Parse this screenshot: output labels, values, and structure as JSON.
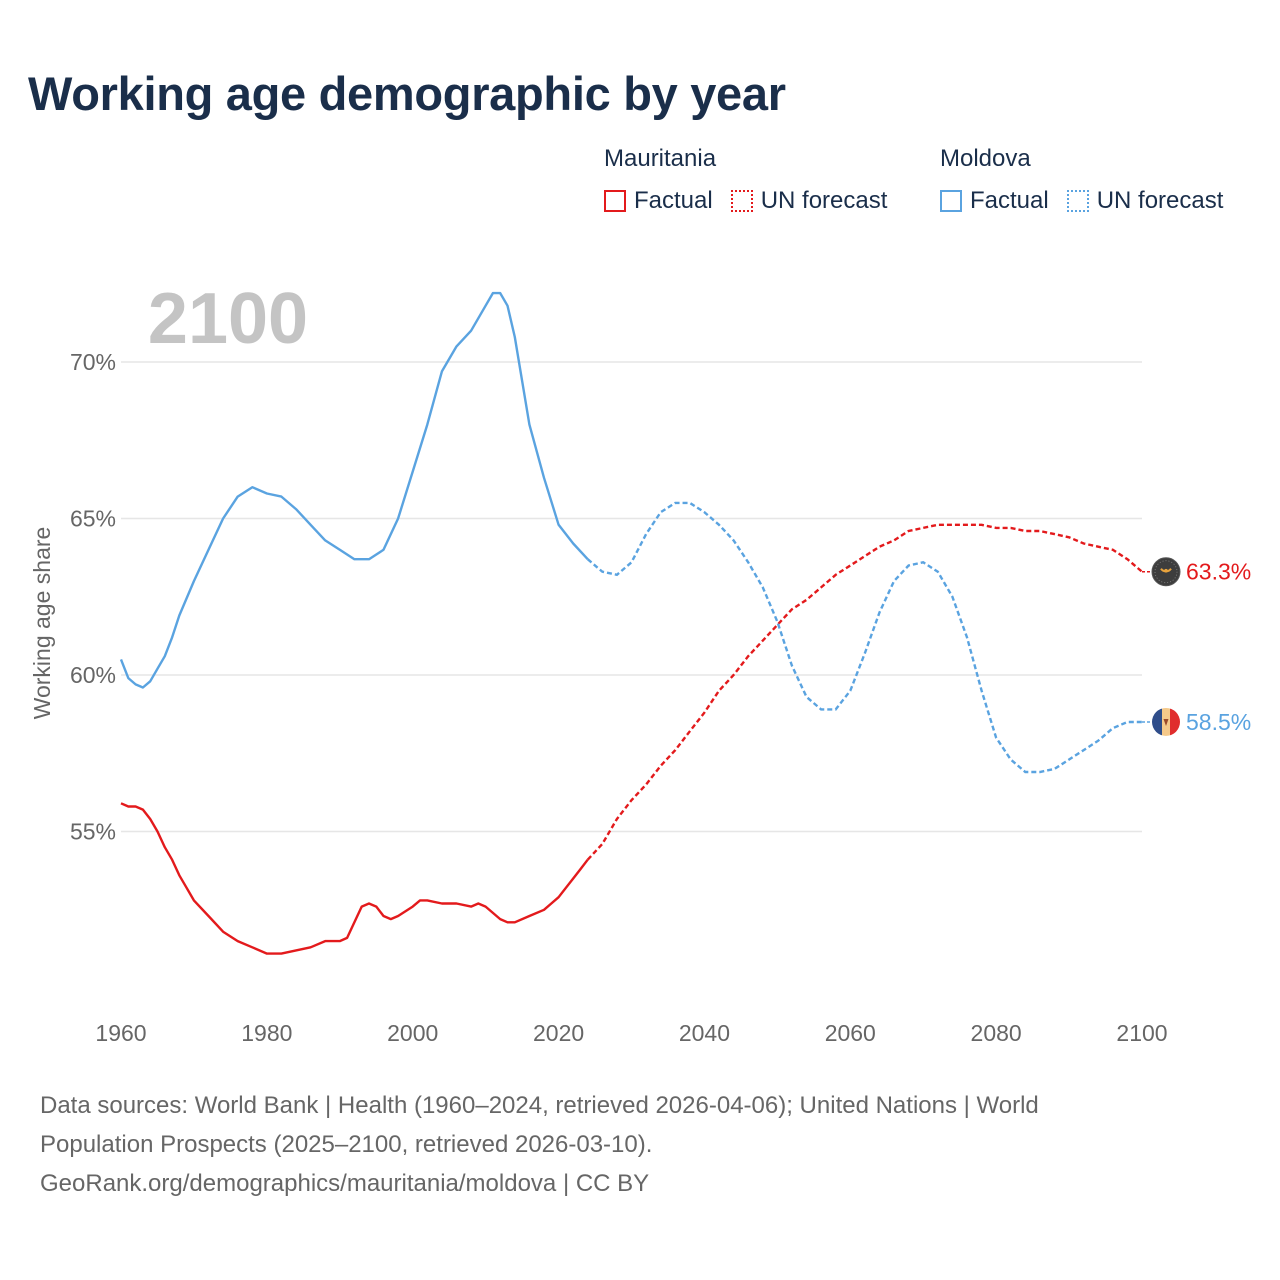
{
  "title": "Working age demographic by year",
  "legend": {
    "series": [
      {
        "country": "Mauritania",
        "color": "#e31a1c",
        "factual_label": "Factual",
        "forecast_label": "UN forecast"
      },
      {
        "country": "Moldova",
        "color": "#5aa3e0",
        "factual_label": "Factual",
        "forecast_label": "UN forecast"
      }
    ]
  },
  "chart_data": {
    "type": "line",
    "title": "Working age demographic by year",
    "ylabel": "Working age share",
    "xlabel": "",
    "year_watermark": "2100",
    "xlim": [
      1960,
      2100
    ],
    "ylim": [
      50,
      73
    ],
    "x_ticks": [
      1960,
      1980,
      2000,
      2020,
      2040,
      2060,
      2080,
      2100
    ],
    "y_ticks": [
      {
        "value": 55,
        "label": "55%"
      },
      {
        "value": 60,
        "label": "60%"
      },
      {
        "value": 65,
        "label": "65%"
      },
      {
        "value": 70,
        "label": "70%"
      }
    ],
    "factual_range": [
      1960,
      2024
    ],
    "forecast_range": [
      2024,
      2100
    ],
    "series": [
      {
        "name": "Mauritania",
        "color": "#e31a1c",
        "end_label": "63.3%",
        "points": [
          [
            1960,
            55.9
          ],
          [
            1961,
            55.8
          ],
          [
            1962,
            55.8
          ],
          [
            1963,
            55.7
          ],
          [
            1964,
            55.4
          ],
          [
            1965,
            55.0
          ],
          [
            1966,
            54.5
          ],
          [
            1967,
            54.1
          ],
          [
            1968,
            53.6
          ],
          [
            1969,
            53.2
          ],
          [
            1970,
            52.8
          ],
          [
            1972,
            52.3
          ],
          [
            1974,
            51.8
          ],
          [
            1976,
            51.5
          ],
          [
            1978,
            51.3
          ],
          [
            1980,
            51.1
          ],
          [
            1982,
            51.1
          ],
          [
            1984,
            51.2
          ],
          [
            1986,
            51.3
          ],
          [
            1988,
            51.5
          ],
          [
            1990,
            51.5
          ],
          [
            1991,
            51.6
          ],
          [
            1992,
            52.1
          ],
          [
            1993,
            52.6
          ],
          [
            1994,
            52.7
          ],
          [
            1995,
            52.6
          ],
          [
            1996,
            52.3
          ],
          [
            1997,
            52.2
          ],
          [
            1998,
            52.3
          ],
          [
            2000,
            52.6
          ],
          [
            2001,
            52.8
          ],
          [
            2002,
            52.8
          ],
          [
            2004,
            52.7
          ],
          [
            2006,
            52.7
          ],
          [
            2008,
            52.6
          ],
          [
            2009,
            52.7
          ],
          [
            2010,
            52.6
          ],
          [
            2012,
            52.2
          ],
          [
            2013,
            52.1
          ],
          [
            2014,
            52.1
          ],
          [
            2016,
            52.3
          ],
          [
            2018,
            52.5
          ],
          [
            2019,
            52.7
          ],
          [
            2020,
            52.9
          ],
          [
            2021,
            53.2
          ],
          [
            2022,
            53.5
          ],
          [
            2023,
            53.8
          ],
          [
            2024,
            54.1
          ],
          [
            2026,
            54.6
          ],
          [
            2028,
            55.4
          ],
          [
            2030,
            56.0
          ],
          [
            2032,
            56.5
          ],
          [
            2034,
            57.1
          ],
          [
            2036,
            57.6
          ],
          [
            2038,
            58.2
          ],
          [
            2040,
            58.8
          ],
          [
            2042,
            59.5
          ],
          [
            2044,
            60.0
          ],
          [
            2046,
            60.6
          ],
          [
            2048,
            61.1
          ],
          [
            2050,
            61.6
          ],
          [
            2052,
            62.1
          ],
          [
            2054,
            62.4
          ],
          [
            2056,
            62.8
          ],
          [
            2058,
            63.2
          ],
          [
            2060,
            63.5
          ],
          [
            2062,
            63.8
          ],
          [
            2064,
            64.1
          ],
          [
            2066,
            64.3
          ],
          [
            2068,
            64.6
          ],
          [
            2070,
            64.7
          ],
          [
            2072,
            64.8
          ],
          [
            2074,
            64.8
          ],
          [
            2076,
            64.8
          ],
          [
            2078,
            64.8
          ],
          [
            2080,
            64.7
          ],
          [
            2082,
            64.7
          ],
          [
            2084,
            64.6
          ],
          [
            2086,
            64.6
          ],
          [
            2088,
            64.5
          ],
          [
            2090,
            64.4
          ],
          [
            2092,
            64.2
          ],
          [
            2094,
            64.1
          ],
          [
            2096,
            64.0
          ],
          [
            2098,
            63.7
          ],
          [
            2100,
            63.3
          ]
        ]
      },
      {
        "name": "Moldova",
        "color": "#5aa3e0",
        "end_label": "58.5%",
        "points": [
          [
            1960,
            60.5
          ],
          [
            1961,
            59.9
          ],
          [
            1962,
            59.7
          ],
          [
            1963,
            59.6
          ],
          [
            1964,
            59.8
          ],
          [
            1965,
            60.2
          ],
          [
            1966,
            60.6
          ],
          [
            1967,
            61.2
          ],
          [
            1968,
            61.9
          ],
          [
            1970,
            63.0
          ],
          [
            1972,
            64.0
          ],
          [
            1974,
            65.0
          ],
          [
            1976,
            65.7
          ],
          [
            1978,
            66.0
          ],
          [
            1980,
            65.8
          ],
          [
            1982,
            65.7
          ],
          [
            1984,
            65.3
          ],
          [
            1986,
            64.8
          ],
          [
            1988,
            64.3
          ],
          [
            1990,
            64.0
          ],
          [
            1992,
            63.7
          ],
          [
            1994,
            63.7
          ],
          [
            1996,
            64.0
          ],
          [
            1998,
            65.0
          ],
          [
            2000,
            66.5
          ],
          [
            2002,
            68.0
          ],
          [
            2004,
            69.7
          ],
          [
            2006,
            70.5
          ],
          [
            2008,
            71.0
          ],
          [
            2010,
            71.8
          ],
          [
            2011,
            72.2
          ],
          [
            2012,
            72.2
          ],
          [
            2013,
            71.8
          ],
          [
            2014,
            70.8
          ],
          [
            2016,
            68.0
          ],
          [
            2018,
            66.3
          ],
          [
            2020,
            64.8
          ],
          [
            2022,
            64.2
          ],
          [
            2024,
            63.7
          ],
          [
            2026,
            63.3
          ],
          [
            2028,
            63.2
          ],
          [
            2030,
            63.6
          ],
          [
            2032,
            64.5
          ],
          [
            2034,
            65.2
          ],
          [
            2036,
            65.5
          ],
          [
            2038,
            65.5
          ],
          [
            2040,
            65.2
          ],
          [
            2042,
            64.8
          ],
          [
            2044,
            64.3
          ],
          [
            2046,
            63.6
          ],
          [
            2048,
            62.8
          ],
          [
            2050,
            61.7
          ],
          [
            2052,
            60.3
          ],
          [
            2054,
            59.3
          ],
          [
            2056,
            58.9
          ],
          [
            2058,
            58.9
          ],
          [
            2060,
            59.5
          ],
          [
            2062,
            60.7
          ],
          [
            2064,
            62.0
          ],
          [
            2066,
            63.0
          ],
          [
            2068,
            63.5
          ],
          [
            2070,
            63.6
          ],
          [
            2072,
            63.3
          ],
          [
            2074,
            62.5
          ],
          [
            2076,
            61.2
          ],
          [
            2078,
            59.5
          ],
          [
            2080,
            58.0
          ],
          [
            2082,
            57.3
          ],
          [
            2084,
            56.9
          ],
          [
            2086,
            56.9
          ],
          [
            2088,
            57.0
          ],
          [
            2090,
            57.3
          ],
          [
            2092,
            57.6
          ],
          [
            2094,
            57.9
          ],
          [
            2096,
            58.3
          ],
          [
            2098,
            58.5
          ],
          [
            2100,
            58.5
          ]
        ]
      }
    ]
  },
  "sources": {
    "line1": "Data sources: World Bank | Health (1960–2024, retrieved 2026-04-06); United Nations | World",
    "line2": "Population Prospects (2025–2100, retrieved 2026-03-10).",
    "line3": "GeoRank.org/demographics/mauritania/moldova | CC BY"
  }
}
